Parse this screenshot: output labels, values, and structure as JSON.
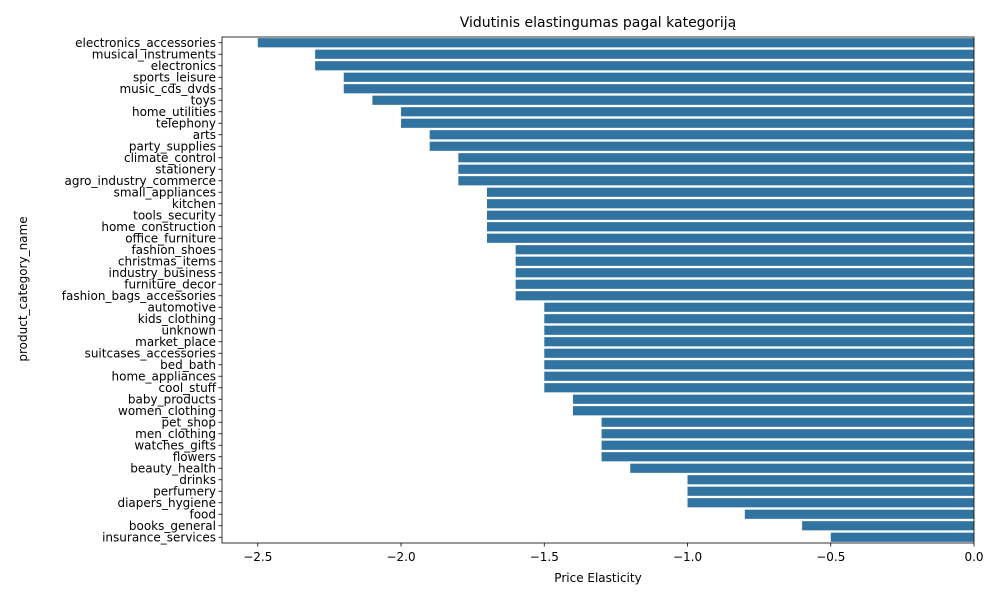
{
  "chart_data": {
    "type": "bar",
    "orientation": "horizontal",
    "title": "Vidutinis elastingumas pagal kategoriją",
    "xlabel": "Price Elasticity",
    "ylabel": "product_category_name",
    "xlim": [
      -2.625,
      0.0
    ],
    "xticks": [
      -2.5,
      -2.0,
      -1.5,
      -1.0,
      -0.5,
      0.0
    ],
    "xtick_labels": [
      "−2.5",
      "−2.0",
      "−1.5",
      "−1.0",
      "−0.5",
      "0.0"
    ],
    "bar_color": "#3274a1",
    "grid": false,
    "categories": [
      "electronics_accessories",
      "musical_instruments",
      "electronics",
      "sports_leisure",
      "music_cds_dvds",
      "toys",
      "home_utilities",
      "telephony",
      "arts",
      "party_supplies",
      "climate_control",
      "stationery",
      "agro_industry_commerce",
      "small_appliances",
      "kitchen",
      "tools_security",
      "home_construction",
      "office_furniture",
      "fashion_shoes",
      "christmas_items",
      "industry_business",
      "furniture_decor",
      "fashion_bags_accessories",
      "automotive",
      "kids_clothing",
      "unknown",
      "market_place",
      "suitcases_accessories",
      "bed_bath",
      "home_appliances",
      "cool_stuff",
      "baby_products",
      "women_clothing",
      "pet_shop",
      "men_clothing",
      "watches_gifts",
      "flowers",
      "beauty_health",
      "drinks",
      "perfumery",
      "diapers_hygiene",
      "food",
      "books_general",
      "insurance_services"
    ],
    "values": [
      -2.5,
      -2.3,
      -2.3,
      -2.2,
      -2.2,
      -2.1,
      -2.0,
      -2.0,
      -1.9,
      -1.9,
      -1.8,
      -1.8,
      -1.8,
      -1.7,
      -1.7,
      -1.7,
      -1.7,
      -1.7,
      -1.6,
      -1.6,
      -1.6,
      -1.6,
      -1.6,
      -1.5,
      -1.5,
      -1.5,
      -1.5,
      -1.5,
      -1.5,
      -1.5,
      -1.5,
      -1.4,
      -1.4,
      -1.3,
      -1.3,
      -1.3,
      -1.3,
      -1.2,
      -1.0,
      -1.0,
      -1.0,
      -0.8,
      -0.6,
      -0.5
    ]
  }
}
